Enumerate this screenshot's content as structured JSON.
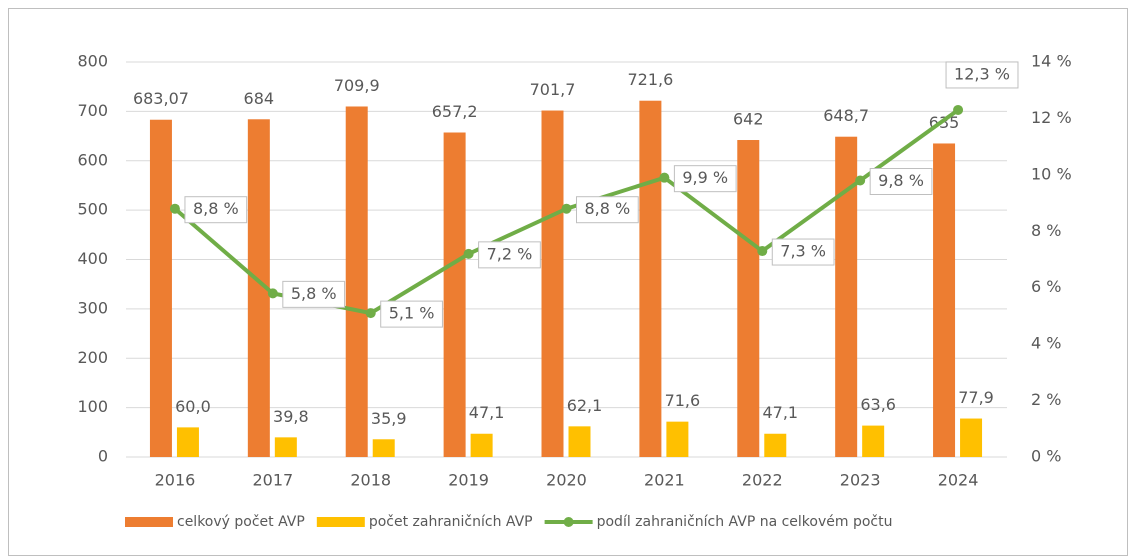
{
  "chart_data": {
    "type": "bar-line",
    "categories": [
      "2016",
      "2017",
      "2018",
      "2019",
      "2020",
      "2021",
      "2022",
      "2023",
      "2024"
    ],
    "series": [
      {
        "name": "celkový počet AVP",
        "color": "#ed7d31",
        "type": "bar",
        "values": [
          683.07,
          684,
          709.9,
          657.2,
          701.7,
          721.6,
          642,
          648.7,
          635
        ],
        "value_labels": [
          "683,07",
          "684",
          "709,9",
          "657,2",
          "701,7",
          "721,6",
          "642",
          "648,7",
          "635"
        ]
      },
      {
        "name": "počet zahraničních AVP",
        "color": "#ffc000",
        "type": "bar",
        "values": [
          60.0,
          39.8,
          35.9,
          47.1,
          62.1,
          71.6,
          47.1,
          63.6,
          77.9
        ],
        "value_labels": [
          "60,0",
          "39,8",
          "35,9",
          "47,1",
          "62,1",
          "71,6",
          "47,1",
          "63,6",
          "77,9"
        ]
      },
      {
        "name": "podíl zahraničních AVP na celkovém počtu",
        "color": "#70ad47",
        "type": "line",
        "axis": "y2",
        "values": [
          8.8,
          5.8,
          5.1,
          7.2,
          8.8,
          9.9,
          7.3,
          9.8,
          12.3
        ],
        "value_labels": [
          "8,8 %",
          "5,8 %",
          "5,1 %",
          "7,2 %",
          "8,8 %",
          "9,9 %",
          "7,3 %",
          "9,8 %",
          "12,3 %"
        ]
      }
    ],
    "ylim": [
      0,
      800
    ],
    "yticks": [
      0,
      100,
      200,
      300,
      400,
      500,
      600,
      700,
      800
    ],
    "y2lim": [
      0,
      14
    ],
    "y2ticks": [
      {
        "value": 0,
        "label": "0 %"
      },
      {
        "value": 2,
        "label": "2 %"
      },
      {
        "value": 4,
        "label": "4 %"
      },
      {
        "value": 6,
        "label": "6 %"
      },
      {
        "value": 8,
        "label": "8 %"
      },
      {
        "value": 10,
        "label": "10 %"
      },
      {
        "value": 12,
        "label": "12 %"
      },
      {
        "value": 14,
        "label": "14 %"
      }
    ],
    "grid": true,
    "legend": "bottom"
  }
}
